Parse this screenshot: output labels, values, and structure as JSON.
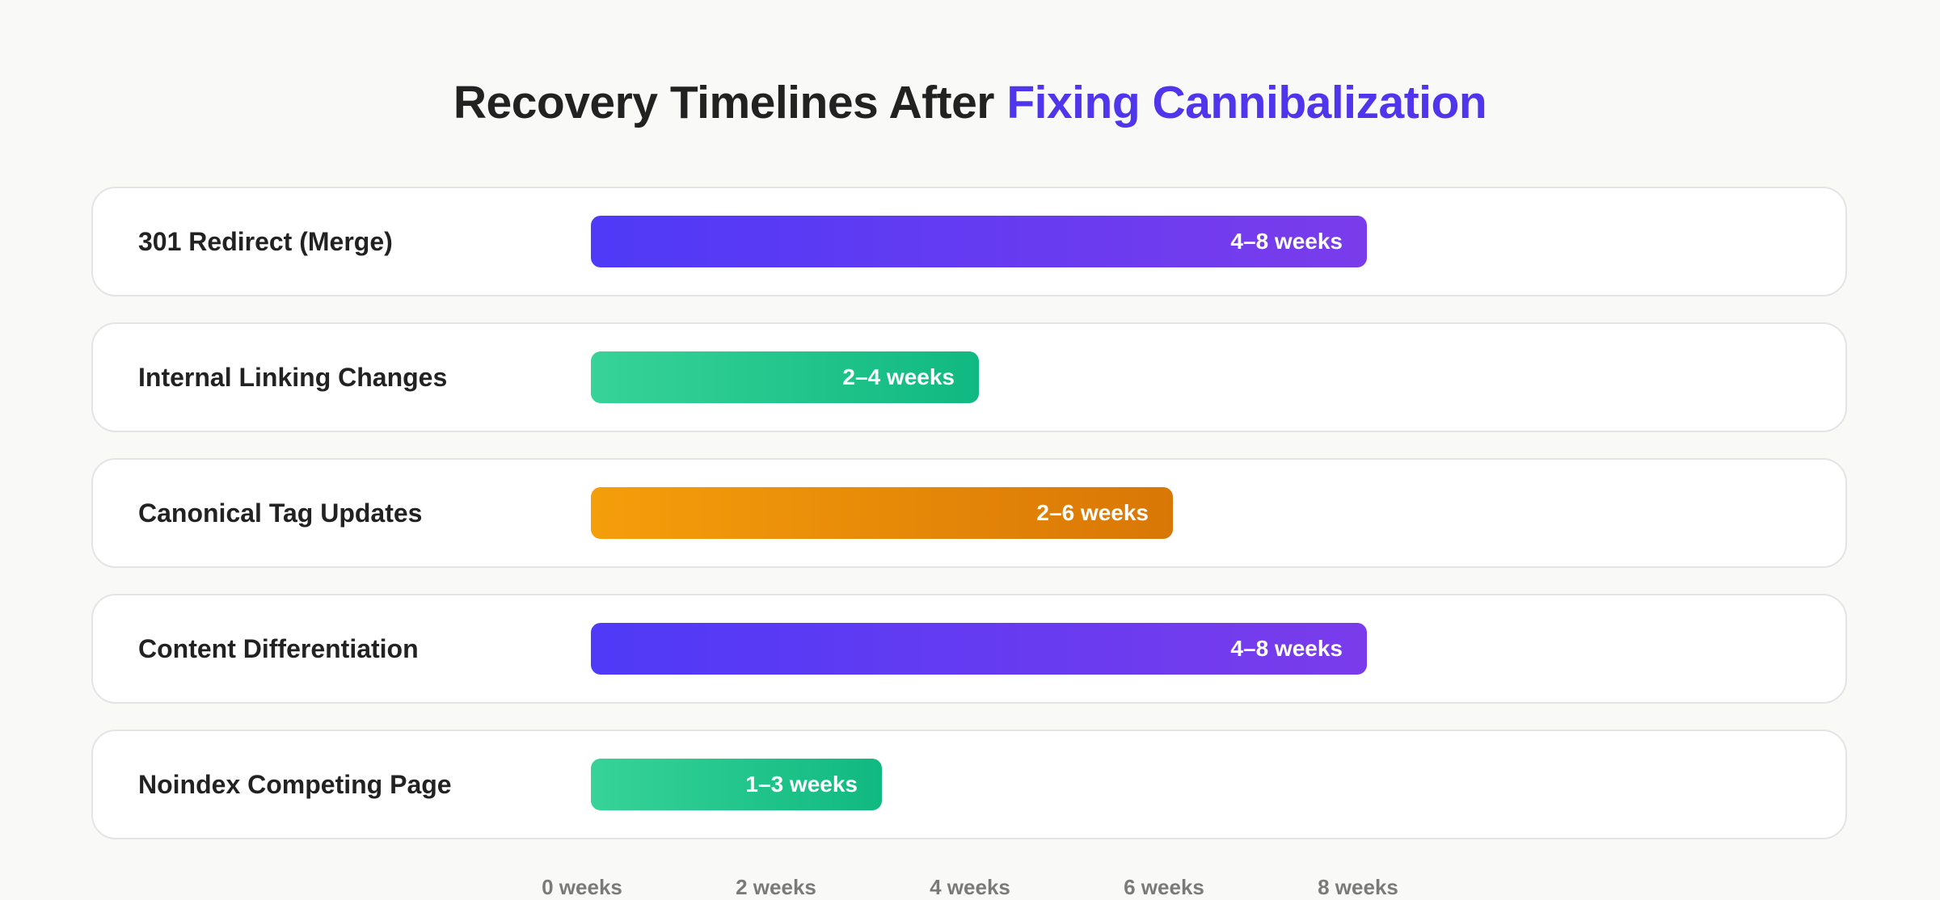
{
  "title": {
    "prefix": "Recovery Timelines After",
    "highlight": "Fixing Cannibalization"
  },
  "colors": {
    "accent": "#4f35ec",
    "purple": [
      "#4f3af7",
      "#7a3ceb"
    ],
    "green": [
      "#37d398",
      "#10b981"
    ],
    "orange": [
      "#f59e0b",
      "#d97706"
    ]
  },
  "chart_data": {
    "type": "bar",
    "orientation": "horizontal",
    "title": "Recovery Timelines After Fixing Cannibalization",
    "xlabel": "",
    "ylabel": "",
    "xlim": [
      0,
      10
    ],
    "x_ticks": [
      {
        "value": 0,
        "label": "0 weeks"
      },
      {
        "value": 2,
        "label": "2 weeks"
      },
      {
        "value": 4,
        "label": "4 weeks"
      },
      {
        "value": 6,
        "label": "6 weeks"
      },
      {
        "value": 8,
        "label": "8 weeks"
      }
    ],
    "categories": [
      "301 Redirect (Merge)",
      "Internal Linking Changes",
      "Canonical Tag Updates",
      "Content Differentiation",
      "Noindex Competing Page"
    ],
    "bars": [
      {
        "category": "301 Redirect (Merge)",
        "min_weeks": 4,
        "max_weeks": 8,
        "label": "4–8 weeks",
        "color": "purple"
      },
      {
        "category": "Internal Linking Changes",
        "min_weeks": 2,
        "max_weeks": 4,
        "label": "2–4 weeks",
        "color": "green"
      },
      {
        "category": "Canonical Tag Updates",
        "min_weeks": 2,
        "max_weeks": 6,
        "label": "2–6 weeks",
        "color": "orange"
      },
      {
        "category": "Content Differentiation",
        "min_weeks": 4,
        "max_weeks": 8,
        "label": "4–8 weeks",
        "color": "purple"
      },
      {
        "category": "Noindex Competing Page",
        "min_weeks": 1,
        "max_weeks": 3,
        "label": "1–3 weeks",
        "color": "green"
      }
    ],
    "grid": false,
    "legend": "none"
  }
}
